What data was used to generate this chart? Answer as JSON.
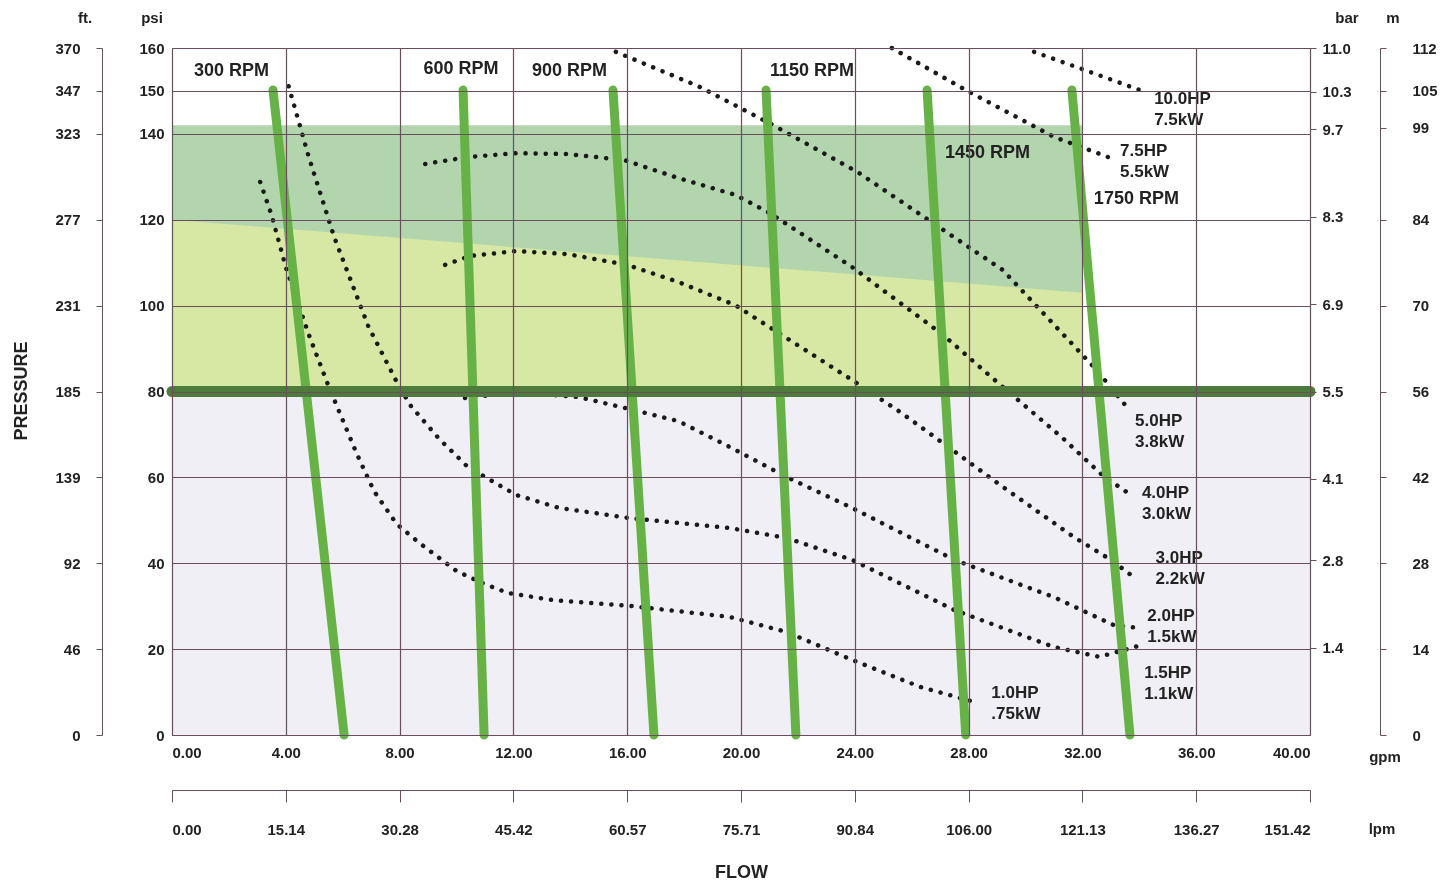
{
  "chart_data": {
    "type": "line",
    "xlabel": "FLOW",
    "xlim": [
      0,
      40
    ],
    "xticks": [
      {
        "value": 0,
        "label": "0.00"
      },
      {
        "value": 4,
        "label": "4.00"
      },
      {
        "value": 8,
        "label": "8.00"
      },
      {
        "value": 12,
        "label": "12.00"
      },
      {
        "value": 16,
        "label": "16.00"
      },
      {
        "value": 20,
        "label": "20.00"
      },
      {
        "value": 24,
        "label": "24.00"
      },
      {
        "value": 28,
        "label": "28.00"
      },
      {
        "value": 32,
        "label": "32.00"
      },
      {
        "value": 36,
        "label": "36.00"
      },
      {
        "value": 40,
        "label": "40.00"
      }
    ],
    "x2lim": [
      0,
      151.42
    ],
    "x2ticks": [
      {
        "value": 0,
        "label": "0.00"
      },
      15.14,
      30.28,
      45.42,
      60.57,
      75.71,
      90.84,
      {
        "value": 106,
        "label": "106.00"
      },
      121.13,
      136.27,
      151.42
    ],
    "ylim": [
      0,
      160
    ],
    "yticks": [
      0,
      20,
      40,
      60,
      80,
      100,
      120,
      140,
      150,
      160
    ],
    "y2lim": [
      0,
      11
    ],
    "y2ticks": [
      1.4,
      2.8,
      4.1,
      5.5,
      6.9,
      8.3,
      9.7,
      10.3,
      {
        "value": 11,
        "label": "11.0"
      }
    ],
    "y3lim": [
      0,
      112
    ],
    "y3ticks": [
      0,
      14,
      28,
      42,
      56,
      70,
      84,
      99,
      105,
      112
    ],
    "grid": true,
    "bands": [
      {
        "axis": "y",
        "from": 0,
        "to": 80,
        "color": "#f1eff6"
      }
    ],
    "ref_lines": [
      {
        "axis": "y",
        "value": 80,
        "color": "#4e7a3c"
      }
    ],
    "annotations": [
      "ft.",
      "psi",
      "bar",
      "m",
      "gpm",
      "lpm",
      "PRESSURE",
      "0",
      "46",
      "92",
      "139",
      "185",
      "231",
      "277",
      "323",
      "347",
      "370"
    ],
    "series": [
      {
        "type": "area",
        "color": "#b3d5ae",
        "x": [
          0,
          32
        ],
        "values": [
          142,
          142
        ]
      },
      {
        "type": "area",
        "color": "#d6e8a4",
        "x": [
          0,
          32
        ],
        "values": [
          120,
          103
        ]
      },
      {
        "name": "10.0HP\n7.5kW",
        "color": "#1a1a1a",
        "line_style": "dotted",
        "x": [
          30.3,
          32.2,
          34.1
        ],
        "values": [
          159.1,
          154.6,
          150.0
        ]
      },
      {
        "name": "7.5HP\n5.5kW",
        "color": "#1a1a1a",
        "line_style": "dotted",
        "x": [
          25.3,
          27.9,
          31.0,
          32.9
        ],
        "values": [
          160,
          150.2,
          139.3,
          134.6
        ]
      },
      {
        "name": "5.0HP\n3.8kW",
        "color": "#1a1a1a",
        "line_style": "dotted",
        "x": [
          15.6,
          18.5,
          21.0,
          24.1,
          26.6,
          29.2,
          32.5,
          33.5
        ],
        "values": [
          159.1,
          151.1,
          142.5,
          131.1,
          119.9,
          108.3,
          85.0,
          76.9
        ]
      },
      {
        "name": "4.0HP\n3.0kW",
        "color": "#1a1a1a",
        "line_style": "dotted",
        "x": [
          8.9,
          10.4,
          12.1,
          13.9,
          15.9,
          17.8,
          19.8,
          21.0,
          23.9,
          27.1,
          29.0,
          31.3,
          32.7,
          33.6
        ],
        "values": [
          133.0,
          134.6,
          135.5,
          135.3,
          133.9,
          129.7,
          125.8,
          121.6,
          109.0,
          93.2,
          82.2,
          69.2,
          60.5,
          56.4
        ]
      },
      {
        "name": "3.0HP\n2.2kW",
        "color": "#1a1a1a",
        "line_style": "dotted",
        "x": [
          9.6,
          10.5,
          12.1,
          13.9,
          16.0,
          17.8,
          19.8,
          21.0,
          23.9,
          25.6,
          27.2,
          29.2,
          31.7,
          33.0,
          33.8
        ],
        "values": [
          109.5,
          111.6,
          112.7,
          112.0,
          109.5,
          105.5,
          100.1,
          95.0,
          82.7,
          75.2,
          67.5,
          57.8,
          46.1,
          40.8,
          36.8
        ]
      },
      {
        "name": "2.0HP\n1.5kW",
        "color": "#1a1a1a",
        "line_style": "dotted",
        "x": [
          10.3,
          11.3,
          12.6,
          14.3,
          15.9,
          17.8,
          19.6,
          21.6,
          23.9,
          27.5,
          31.0,
          33.1,
          34.0
        ],
        "values": [
          78.5,
          79.2,
          79.6,
          78.7,
          76.2,
          73.1,
          67.1,
          60.1,
          52.9,
          40.8,
          32.1,
          25.6,
          24.9
        ]
      },
      {
        "name": "1.5HP\n1.1kW",
        "color": "#1a1a1a",
        "line_style": "dotted",
        "x": [
          4.1,
          4.8,
          5.7,
          6.9,
          7.9,
          8.4,
          9.4,
          10.4,
          12.1,
          13.6,
          16.1,
          19.6,
          21.6,
          23.9,
          27.5,
          31.0,
          32.6,
          34.1
        ],
        "values": [
          151.1,
          134.8,
          116.0,
          95.2,
          82.2,
          76.6,
          68.9,
          62.4,
          55.9,
          52.9,
          50.5,
          48.2,
          45.9,
          40.8,
          29.1,
          20.5,
          18.2,
          21.0
        ]
      },
      {
        "name": "1.0HP\n.75kW",
        "color": "#1a1a1a",
        "line_style": "dotted",
        "x": [
          3.1,
          3.5,
          4.0,
          4.8,
          5.5,
          6.5,
          7.1,
          7.9,
          8.7,
          10.0,
          10.9,
          11.8,
          13.4,
          16.2,
          19.6,
          21.6,
          23.9,
          26.3,
          28.2
        ],
        "values": [
          128.8,
          121.1,
          109.0,
          93.4,
          81.3,
          65.4,
          56.8,
          49.1,
          44.7,
          38.2,
          35.4,
          33.1,
          31.4,
          30.0,
          27.5,
          24.0,
          17.5,
          11.2,
          7.7
        ]
      },
      {
        "name": "300 RPM",
        "color": "#66b247",
        "line_style": "solid",
        "x": [
          3.55,
          6.05
        ],
        "values": [
          150.2,
          0
        ]
      },
      {
        "name": "600 RPM",
        "color": "#66b247",
        "line_style": "solid",
        "x": [
          10.23,
          10.97
        ],
        "values": [
          150.2,
          0
        ]
      },
      {
        "name": "900 RPM",
        "color": "#66b247",
        "line_style": "solid",
        "x": [
          15.5,
          16.94
        ],
        "values": [
          150.2,
          0
        ]
      },
      {
        "name": "1150 RPM",
        "color": "#66b247",
        "line_style": "solid",
        "x": [
          20.88,
          21.93
        ],
        "values": [
          150.2,
          0
        ]
      },
      {
        "name": "1450 RPM",
        "color": "#66b247",
        "line_style": "solid",
        "x": [
          26.54,
          27.9
        ],
        "values": [
          150.2,
          0
        ]
      },
      {
        "name": "1750 RPM",
        "color": "#66b247",
        "line_style": "solid",
        "x": [
          31.63,
          33.67
        ],
        "values": [
          150.2,
          0
        ]
      }
    ]
  }
}
